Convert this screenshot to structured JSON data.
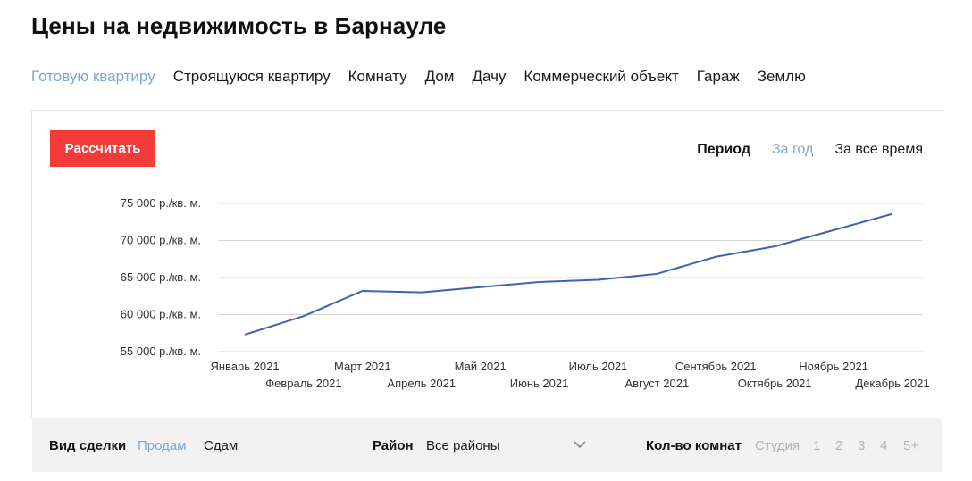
{
  "page_title": "Цены на недвижимость в Барнауле",
  "property_types": [
    {
      "label": "Готовую квартиру",
      "active": true
    },
    {
      "label": "Строящуюся квартиру",
      "active": false
    },
    {
      "label": "Комнату",
      "active": false
    },
    {
      "label": "Дом",
      "active": false
    },
    {
      "label": "Дачу",
      "active": false
    },
    {
      "label": "Коммерческий объект",
      "active": false
    },
    {
      "label": "Гараж",
      "active": false
    },
    {
      "label": "Землю",
      "active": false
    }
  ],
  "calc_button_label": "Рассчитать",
  "period": {
    "label": "Период",
    "options": [
      {
        "label": "За год",
        "active": true
      },
      {
        "label": "За все время",
        "active": false
      }
    ]
  },
  "chart_data": {
    "type": "line",
    "unit": "р./кв. м.",
    "categories": [
      "Январь 2021",
      "Февраль 2021",
      "Март 2021",
      "Апрель 2021",
      "Май 2021",
      "Июнь 2021",
      "Июль 2021",
      "Август 2021",
      "Сентябрь 2021",
      "Октябрь 2021",
      "Ноябрь 2021",
      "Декабрь 2021"
    ],
    "series": [
      {
        "values": [
          57300,
          59800,
          63200,
          63000,
          63700,
          64400,
          64700,
          65500,
          67800,
          69200,
          71400,
          73600
        ]
      }
    ],
    "y_ticks": [
      {
        "value": 55000,
        "label": "55 000 р./кв. м."
      },
      {
        "value": 60000,
        "label": "60 000 р./кв. м."
      },
      {
        "value": 65000,
        "label": "65 000 р./кв. м."
      },
      {
        "value": 70000,
        "label": "70 000 р./кв. м."
      },
      {
        "value": 75000,
        "label": "75 000 р./кв. м."
      }
    ],
    "ylim": [
      55000,
      75000
    ],
    "grid": true,
    "line_color": "#3e64b0",
    "grid_color": "#d5d5d5"
  },
  "filters": {
    "deal_type": {
      "label": "Вид сделки",
      "options": [
        {
          "label": "Продам",
          "active": true
        },
        {
          "label": "Сдам",
          "active": false
        }
      ]
    },
    "district": {
      "label": "Район",
      "value": "Все районы"
    },
    "rooms": {
      "label": "Кол-во комнат",
      "options": [
        "Студия",
        "1",
        "2",
        "3",
        "4",
        "5+"
      ]
    }
  },
  "colors": {
    "accent": "#7fa6d6",
    "button": "#f23b3b"
  }
}
